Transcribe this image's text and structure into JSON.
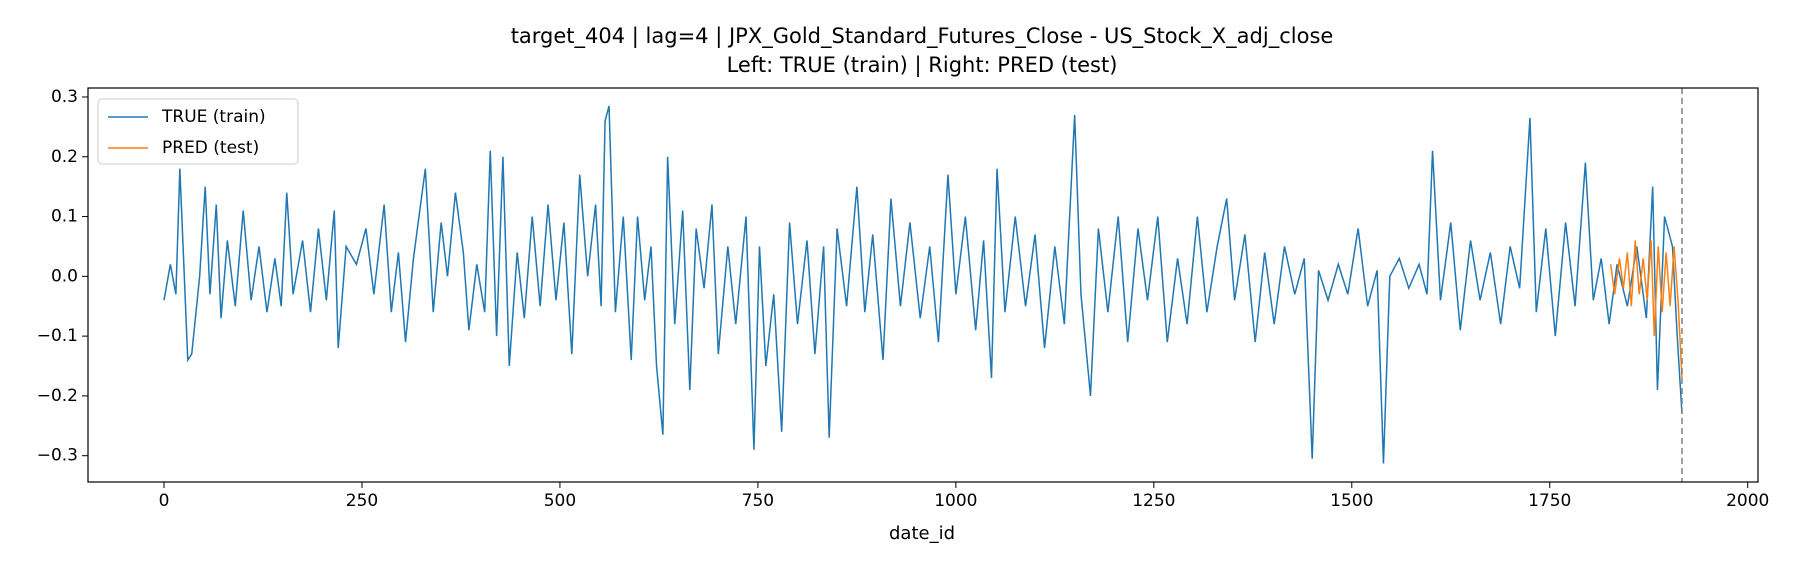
{
  "chart_data": {
    "type": "line",
    "title": "target_404 | lag=4 | JPX_Gold_Standard_Futures_Close - US_Stock_X_adj_close",
    "subtitle": "Left: TRUE (train) | Right: PRED (test)",
    "xlabel": "date_id",
    "xlim": [
      -96,
      2013
    ],
    "ylim": [
      -0.344,
      0.315
    ],
    "xticks": [
      0,
      250,
      500,
      750,
      1000,
      1250,
      1500,
      1750,
      2000
    ],
    "yticks": [
      {
        "value": -0.3,
        "label": "−0.3"
      },
      {
        "value": -0.2,
        "label": "−0.2"
      },
      {
        "value": -0.1,
        "label": "−0.1"
      },
      {
        "value": 0,
        "label": "0.0"
      },
      0.1,
      0.2,
      0.3
    ],
    "vline": 1917,
    "legend": "upper left",
    "series": [
      {
        "name": "TRUE (train)",
        "color": "#1f77b4",
        "x": [
          0,
          8,
          15,
          20,
          25,
          30,
          35,
          45,
          52,
          58,
          66,
          72,
          80,
          90,
          100,
          110,
          120,
          130,
          140,
          148,
          155,
          163,
          175,
          185,
          195,
          205,
          215,
          220,
          230,
          243,
          255,
          265,
          278,
          287,
          296,
          305,
          315,
          322,
          330,
          340,
          350,
          358,
          368,
          378,
          385,
          395,
          405,
          412,
          420,
          428,
          436,
          446,
          455,
          465,
          475,
          485,
          495,
          505,
          515,
          525,
          535,
          545,
          552,
          557,
          562,
          570,
          580,
          590,
          598,
          607,
          615,
          622,
          630,
          636,
          645,
          655,
          664,
          672,
          682,
          692,
          700,
          712,
          722,
          735,
          745,
          752,
          760,
          770,
          780,
          790,
          800,
          812,
          822,
          833,
          840,
          850,
          862,
          875,
          885,
          895,
          908,
          918,
          930,
          942,
          955,
          967,
          978,
          990,
          1000,
          1012,
          1025,
          1035,
          1045,
          1052,
          1062,
          1075,
          1088,
          1100,
          1112,
          1125,
          1137,
          1150,
          1158,
          1170,
          1180,
          1192,
          1205,
          1217,
          1230,
          1242,
          1255,
          1267,
          1280,
          1292,
          1305,
          1317,
          1330,
          1342,
          1352,
          1365,
          1378,
          1390,
          1402,
          1415,
          1428,
          1440,
          1450,
          1458,
          1470,
          1483,
          1495,
          1508,
          1520,
          1532,
          1540,
          1548,
          1560,
          1572,
          1585,
          1595,
          1602,
          1612,
          1625,
          1637,
          1650,
          1662,
          1675,
          1688,
          1700,
          1712,
          1725,
          1733,
          1745,
          1757,
          1770,
          1782,
          1795,
          1805,
          1815,
          1825,
          1835,
          1848,
          1860,
          1872,
          1880,
          1886,
          1895,
          1905,
          1911,
          1917
        ],
        "values": [
          -0.04,
          0.02,
          -0.03,
          0.18,
          0.02,
          -0.14,
          -0.13,
          0.0,
          0.15,
          -0.03,
          0.12,
          -0.07,
          0.06,
          -0.05,
          0.11,
          -0.04,
          0.05,
          -0.06,
          0.03,
          -0.05,
          0.14,
          -0.03,
          0.06,
          -0.06,
          0.08,
          -0.04,
          0.11,
          -0.12,
          0.05,
          0.02,
          0.08,
          -0.03,
          0.12,
          -0.06,
          0.04,
          -0.11,
          0.03,
          0.1,
          0.18,
          -0.06,
          0.09,
          0.0,
          0.14,
          0.04,
          -0.09,
          0.02,
          -0.06,
          0.21,
          -0.1,
          0.2,
          -0.15,
          0.04,
          -0.07,
          0.1,
          -0.05,
          0.12,
          -0.04,
          0.09,
          -0.13,
          0.17,
          0.0,
          0.12,
          -0.05,
          0.26,
          0.285,
          -0.06,
          0.1,
          -0.14,
          0.1,
          -0.04,
          0.05,
          -0.15,
          -0.265,
          0.2,
          -0.08,
          0.11,
          -0.19,
          0.08,
          -0.02,
          0.12,
          -0.13,
          0.05,
          -0.08,
          0.1,
          -0.29,
          0.05,
          -0.15,
          -0.03,
          -0.26,
          0.09,
          -0.08,
          0.06,
          -0.13,
          0.05,
          -0.27,
          0.08,
          -0.05,
          0.15,
          -0.06,
          0.07,
          -0.14,
          0.13,
          -0.05,
          0.09,
          -0.07,
          0.05,
          -0.11,
          0.17,
          -0.03,
          0.1,
          -0.09,
          0.06,
          -0.17,
          0.18,
          -0.06,
          0.1,
          -0.05,
          0.07,
          -0.12,
          0.05,
          -0.08,
          0.27,
          -0.03,
          -0.2,
          0.08,
          -0.06,
          0.1,
          -0.11,
          0.08,
          -0.04,
          0.1,
          -0.11,
          0.03,
          -0.08,
          0.1,
          -0.06,
          0.05,
          0.13,
          -0.04,
          0.07,
          -0.11,
          0.04,
          -0.08,
          0.05,
          -0.03,
          0.03,
          -0.305,
          0.01,
          -0.04,
          0.02,
          -0.03,
          0.08,
          -0.05,
          0.01,
          -0.313,
          0.0,
          0.03,
          -0.02,
          0.02,
          -0.03,
          0.21,
          -0.04,
          0.09,
          -0.09,
          0.06,
          -0.04,
          0.04,
          -0.08,
          0.05,
          -0.02,
          0.265,
          -0.06,
          0.08,
          -0.1,
          0.09,
          -0.05,
          0.19,
          -0.04,
          0.03,
          -0.08,
          0.02,
          -0.05,
          0.05,
          -0.07,
          0.15,
          -0.19,
          0.1,
          0.05,
          -0.1,
          -0.23
        ]
      },
      {
        "name": "PRED (test)",
        "color": "#ff7f0e",
        "x": [
          1827,
          1832,
          1838,
          1843,
          1848,
          1853,
          1858,
          1863,
          1868,
          1873,
          1878,
          1882,
          1887,
          1892,
          1897,
          1902,
          1907,
          1912,
          1917
        ],
        "values": [
          0.02,
          -0.03,
          0.03,
          -0.02,
          0.04,
          -0.05,
          0.06,
          -0.03,
          0.03,
          -0.04,
          0.06,
          -0.1,
          0.05,
          -0.06,
          0.04,
          -0.05,
          0.05,
          -0.04,
          -0.17
        ]
      }
    ]
  }
}
